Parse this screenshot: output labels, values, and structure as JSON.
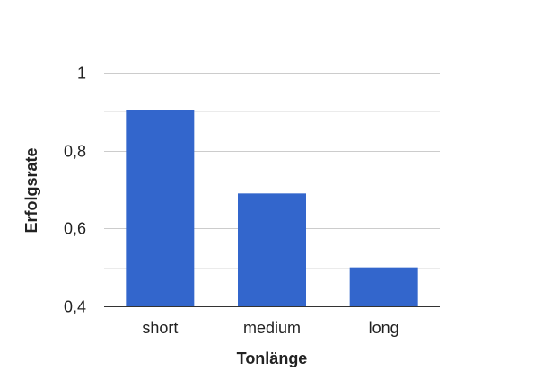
{
  "chart_data": {
    "type": "bar",
    "categories": [
      "short",
      "medium",
      "long"
    ],
    "values": [
      0.905,
      0.69,
      0.5
    ],
    "xlabel": "Tonlänge",
    "ylabel": "Erfolgsrate",
    "ylim": [
      0.4,
      1.0
    ],
    "yticks": [
      "0,4",
      "0,6",
      "0,8",
      "1"
    ],
    "ytick_values": [
      0.4,
      0.6,
      0.8,
      1.0
    ],
    "minor_gridlines": [
      0.5,
      0.7,
      0.9
    ],
    "grid": true,
    "legend": "none",
    "bar_color": "#3366cc",
    "major_grid_color": "#cccccc",
    "minor_grid_color": "#ebebeb"
  }
}
